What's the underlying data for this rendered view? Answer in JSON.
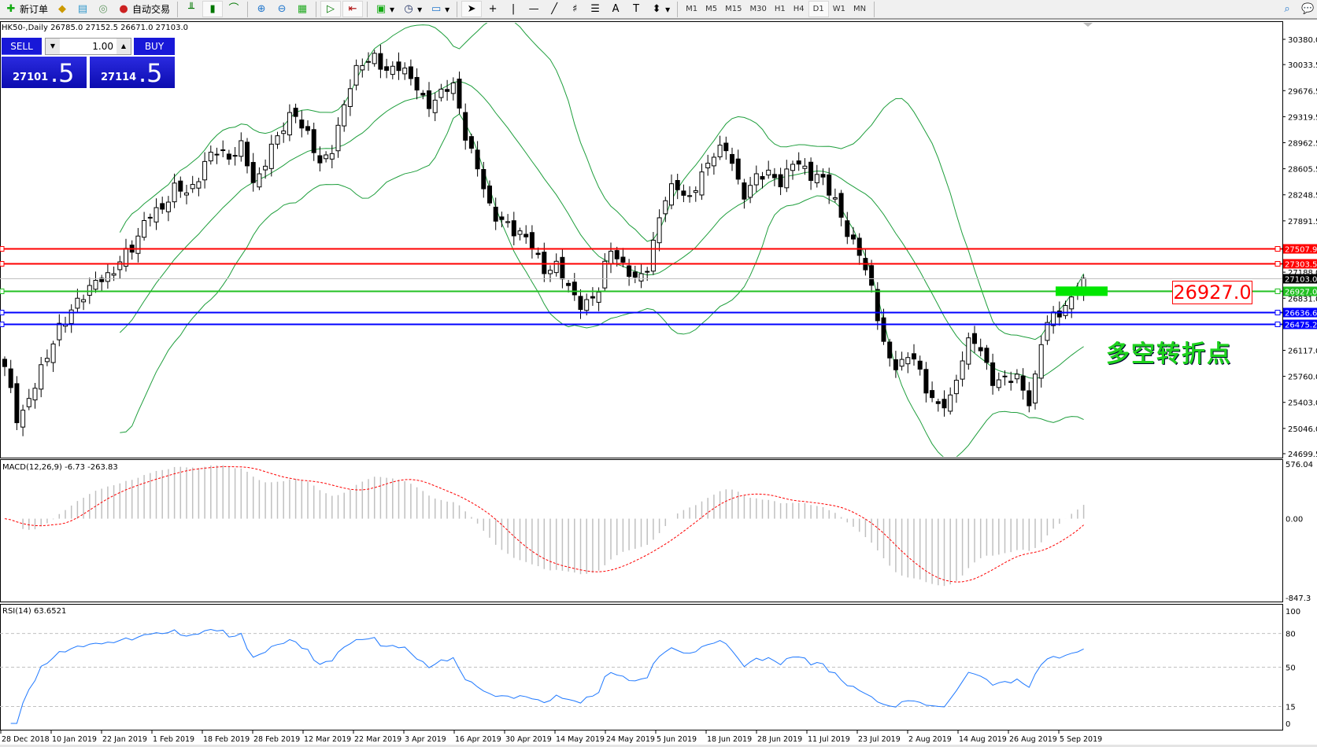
{
  "toolbar": {
    "new_order": "新订单",
    "auto_trading": "自动交易",
    "timeframes": [
      "M1",
      "M5",
      "M15",
      "M30",
      "H1",
      "H4",
      "D1",
      "W1",
      "MN"
    ],
    "active_timeframe": "D1"
  },
  "chart": {
    "header": "HK50-,Daily  26785.0 27152.5 26671.0 27103.0",
    "sell_label": "SELL",
    "buy_label": "BUY",
    "lot": "1.00",
    "sell_price_main": "27101",
    "sell_price_frac": ".5",
    "buy_price_main": "27114",
    "buy_price_frac": ".5",
    "annotation_price": "26927.0",
    "annotation_text": "多空转折点",
    "macd_label": "MACD(12,26,9) -6.73 -263.83",
    "rsi_label": "RSI(14) 63.6521"
  },
  "chart_data": {
    "type": "candlestick",
    "symbol": "HK50-",
    "timeframe": "Daily",
    "price_axis_ticks": [
      30380.0,
      30033.5,
      29676.5,
      29319.5,
      28962.5,
      28605.5,
      28248.5,
      27891.5,
      27188.0,
      26831.0,
      26117.0,
      25760.0,
      25403.0,
      25046.0,
      24699.5
    ],
    "price_range": [
      24699.5,
      30380.0
    ],
    "close_anchors": [
      25854,
      25163,
      25508,
      25911,
      26430,
      26603,
      26891,
      27121,
      27063,
      27467,
      27582,
      27985,
      28100,
      28330,
      28272,
      28618,
      28849,
      28791,
      28906,
      28330,
      28849,
      29079,
      29424,
      29079,
      28618,
      28964,
      29597,
      30058,
      30173,
      29885,
      30058,
      29827,
      29424,
      29654,
      29770,
      29079,
      28618,
      27927,
      27927,
      27697,
      27582,
      27236,
      27236,
      26948,
      26718,
      26833,
      27582,
      27236,
      27063,
      27351,
      28100,
      28445,
      28157,
      28503,
      28906,
      28849,
      28215,
      28503,
      28503,
      28445,
      28733,
      28503,
      28560,
      28157,
      27754,
      27467,
      26833,
      26085,
      25854,
      26085,
      25624,
      25278,
      25508,
      26200,
      26200,
      25739,
      25681,
      25739,
      25393,
      26430,
      26660,
      26776,
      27103
    ],
    "horizontal_lines": [
      {
        "price": "27507.9",
        "color": "#ff0000"
      },
      {
        "price": "27303.5",
        "color": "#ff0000"
      },
      {
        "price": "27103.0",
        "color": "#000000",
        "kind": "bid"
      },
      {
        "price": "26927.0",
        "color": "#22c022"
      },
      {
        "price": "26636.6",
        "color": "#0000ff"
      },
      {
        "price": "26475.2",
        "color": "#0000ff"
      }
    ],
    "indicators": {
      "bollinger": {
        "period": 20,
        "deviation": 2,
        "color": "#1e9e3c"
      }
    },
    "macd": {
      "params": [
        12,
        26,
        9
      ],
      "main": -6.73,
      "signal": -263.83,
      "axis_ticks": [
        "576.04",
        "0.00",
        "-847.3"
      ],
      "range": [
        -847.3,
        576.04
      ],
      "hist_color": "#c0c0c0",
      "signal_color": "#ff0000"
    },
    "rsi": {
      "period": 14,
      "value": 63.6521,
      "axis_ticks": [
        "100",
        "80",
        "50",
        "15",
        "0"
      ],
      "levels": [
        80,
        50,
        15
      ],
      "color": "#1e78ff"
    },
    "x_tick_labels": [
      "28 Dec 2018",
      "10 Jan 2019",
      "22 Jan 2019",
      "1 Feb 2019",
      "18 Feb 2019",
      "28 Feb 2019",
      "12 Mar 2019",
      "22 Mar 2019",
      "3 Apr 2019",
      "16 Apr 2019",
      "30 Apr 2019",
      "14 May 2019",
      "24 May 2019",
      "5 Jun 2019",
      "18 Jun 2019",
      "28 Jun 2019",
      "11 Jul 2019",
      "23 Jul 2019",
      "2 Aug 2019",
      "14 Aug 2019",
      "26 Aug 2019",
      "5 Sep 2019"
    ]
  }
}
